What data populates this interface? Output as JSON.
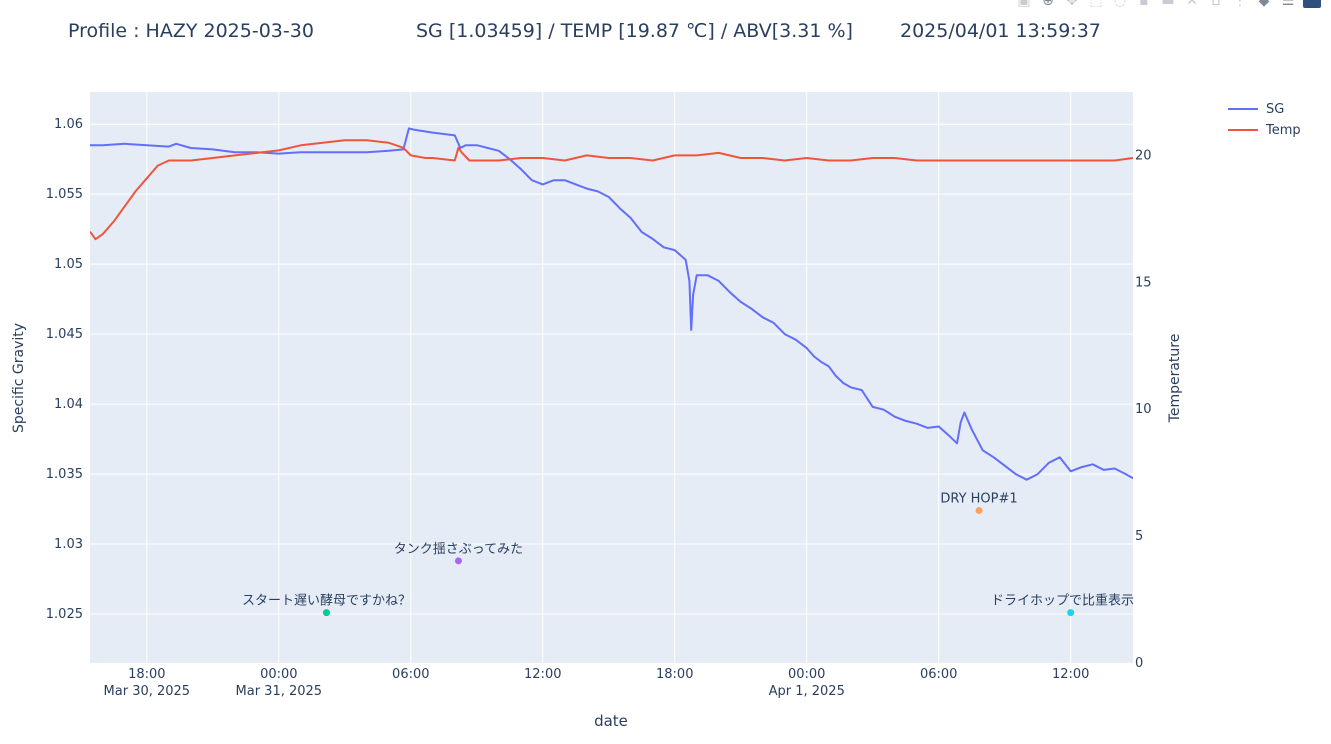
{
  "header": {
    "profile": "Profile : HAZY 2025-03-30",
    "readings": "SG [1.03459] / TEMP [19.87 ℃] / ABV[3.31 %]",
    "timestamp": "2025/04/01 13:59:37"
  },
  "modebar": {
    "icons": [
      "camera-icon",
      "zoom-icon",
      "pan-icon",
      "box-select-icon",
      "lasso-icon",
      "zoom-in-icon",
      "zoom-out-icon",
      "autoscale-icon",
      "home-icon",
      "spike-lines-icon",
      "hover-closest-icon",
      "hover-compare-icon",
      "plotly-logo-icon"
    ]
  },
  "chart_data": {
    "type": "line",
    "xlabel": "date",
    "ylabel": "Specific Gravity",
    "y2label": "Temperature",
    "x_range": [
      "2025-03-30 15:25",
      "2025-04-01 14:50"
    ],
    "ylim": [
      1.0215,
      1.0623
    ],
    "y2lim": [
      0,
      22.5
    ],
    "x_ticks": [
      {
        "t": "2025-03-30 18:00",
        "label": "18:00",
        "sub": "Mar 30, 2025"
      },
      {
        "t": "2025-03-31 00:00",
        "label": "00:00",
        "sub": "Mar 31, 2025"
      },
      {
        "t": "2025-03-31 06:00",
        "label": "06:00",
        "sub": ""
      },
      {
        "t": "2025-03-31 12:00",
        "label": "12:00",
        "sub": ""
      },
      {
        "t": "2025-03-31 18:00",
        "label": "18:00",
        "sub": ""
      },
      {
        "t": "2025-04-01 00:00",
        "label": "00:00",
        "sub": "Apr 1, 2025"
      },
      {
        "t": "2025-04-01 06:00",
        "label": "06:00",
        "sub": ""
      },
      {
        "t": "2025-04-01 12:00",
        "label": "12:00",
        "sub": ""
      }
    ],
    "y_ticks": [
      {
        "v": 1.025,
        "label": "1.025"
      },
      {
        "v": 1.03,
        "label": "1.03"
      },
      {
        "v": 1.035,
        "label": "1.035"
      },
      {
        "v": 1.04,
        "label": "1.04"
      },
      {
        "v": 1.045,
        "label": "1.045"
      },
      {
        "v": 1.05,
        "label": "1.05"
      },
      {
        "v": 1.055,
        "label": "1.055"
      },
      {
        "v": 1.06,
        "label": "1.06"
      }
    ],
    "y2_ticks": [
      {
        "v": 0,
        "label": "0"
      },
      {
        "v": 5,
        "label": "5"
      },
      {
        "v": 10,
        "label": "10"
      },
      {
        "v": 15,
        "label": "15"
      },
      {
        "v": 20,
        "label": "20"
      }
    ],
    "legend_position": "top-right, outside plot",
    "grid": true,
    "series": [
      {
        "name": "SG",
        "axis": "y",
        "color": "#636efa",
        "x": [
          "2025-03-30 15:25",
          "2025-03-30 16:00",
          "2025-03-30 17:00",
          "2025-03-30 18:00",
          "2025-03-30 19:00",
          "2025-03-30 19:20",
          "2025-03-30 20:00",
          "2025-03-30 21:00",
          "2025-03-30 22:00",
          "2025-03-30 23:00",
          "2025-03-31 00:00",
          "2025-03-31 01:00",
          "2025-03-31 02:00",
          "2025-03-31 03:00",
          "2025-03-31 04:00",
          "2025-03-31 05:00",
          "2025-03-31 05:40",
          "2025-03-31 05:55",
          "2025-03-31 06:10",
          "2025-03-31 07:00",
          "2025-03-31 08:00",
          "2025-03-31 08:15",
          "2025-03-31 08:30",
          "2025-03-31 09:00",
          "2025-03-31 09:30",
          "2025-03-31 10:00",
          "2025-03-31 10:30",
          "2025-03-31 11:00",
          "2025-03-31 11:30",
          "2025-03-31 12:00",
          "2025-03-31 12:30",
          "2025-03-31 13:00",
          "2025-03-31 13:30",
          "2025-03-31 14:00",
          "2025-03-31 14:30",
          "2025-03-31 15:00",
          "2025-03-31 15:30",
          "2025-03-31 16:00",
          "2025-03-31 16:30",
          "2025-03-31 17:00",
          "2025-03-31 17:30",
          "2025-03-31 18:00",
          "2025-03-31 18:30",
          "2025-03-31 18:40",
          "2025-03-31 18:45",
          "2025-03-31 18:50",
          "2025-03-31 19:00",
          "2025-03-31 19:30",
          "2025-03-31 20:00",
          "2025-03-31 20:30",
          "2025-03-31 21:00",
          "2025-03-31 21:30",
          "2025-03-31 22:00",
          "2025-03-31 22:30",
          "2025-03-31 23:00",
          "2025-03-31 23:30",
          "2025-04-01 00:00",
          "2025-04-01 00:20",
          "2025-04-01 00:40",
          "2025-04-01 01:00",
          "2025-04-01 01:20",
          "2025-04-01 01:40",
          "2025-04-01 02:00",
          "2025-04-01 02:30",
          "2025-04-01 03:00",
          "2025-04-01 03:30",
          "2025-04-01 04:00",
          "2025-04-01 04:30",
          "2025-04-01 05:00",
          "2025-04-01 05:30",
          "2025-04-01 06:00",
          "2025-04-01 06:30",
          "2025-04-01 06:50",
          "2025-04-01 07:00",
          "2025-04-01 07:10",
          "2025-04-01 07:30",
          "2025-04-01 08:00",
          "2025-04-01 08:30",
          "2025-04-01 09:00",
          "2025-04-01 09:30",
          "2025-04-01 10:00",
          "2025-04-01 10:30",
          "2025-04-01 11:00",
          "2025-04-01 11:30",
          "2025-04-01 12:00",
          "2025-04-01 12:30",
          "2025-04-01 13:00",
          "2025-04-01 13:30",
          "2025-04-01 14:00",
          "2025-04-01 14:30",
          "2025-04-01 14:50"
        ],
        "values": [
          1.0585,
          1.0585,
          1.0586,
          1.0585,
          1.0584,
          1.0586,
          1.0583,
          1.0582,
          1.058,
          1.058,
          1.0579,
          1.058,
          1.058,
          1.058,
          1.058,
          1.0581,
          1.0582,
          1.0597,
          1.0596,
          1.0594,
          1.0592,
          1.0583,
          1.0585,
          1.0585,
          1.0583,
          1.0581,
          1.0575,
          1.0568,
          1.056,
          1.0557,
          1.056,
          1.056,
          1.0557,
          1.0554,
          1.0552,
          1.0548,
          1.054,
          1.0533,
          1.0523,
          1.0518,
          1.0512,
          1.051,
          1.0503,
          1.0488,
          1.0453,
          1.0478,
          1.0492,
          1.0492,
          1.0488,
          1.048,
          1.0473,
          1.0468,
          1.0462,
          1.0458,
          1.045,
          1.0446,
          1.044,
          1.0434,
          1.043,
          1.0427,
          1.042,
          1.0415,
          1.0412,
          1.041,
          1.0398,
          1.0396,
          1.0391,
          1.0388,
          1.0386,
          1.0383,
          1.0384,
          1.0377,
          1.0372,
          1.0387,
          1.0394,
          1.0382,
          1.0367,
          1.0362,
          1.0356,
          1.035,
          1.0346,
          1.035,
          1.0358,
          1.0362,
          1.0352,
          1.0355,
          1.0357,
          1.0353,
          1.0354,
          1.035,
          1.0347
        ]
      },
      {
        "name": "Temp",
        "axis": "y2",
        "color": "#ef553b",
        "x": [
          "2025-03-30 15:25",
          "2025-03-30 15:40",
          "2025-03-30 16:00",
          "2025-03-30 16:30",
          "2025-03-30 17:00",
          "2025-03-30 17:30",
          "2025-03-30 18:00",
          "2025-03-30 18:30",
          "2025-03-30 19:00",
          "2025-03-30 19:30",
          "2025-03-30 20:00",
          "2025-03-30 21:00",
          "2025-03-30 22:00",
          "2025-03-30 23:00",
          "2025-03-31 00:00",
          "2025-03-31 01:00",
          "2025-03-31 02:00",
          "2025-03-31 03:00",
          "2025-03-31 04:00",
          "2025-03-31 05:00",
          "2025-03-31 05:40",
          "2025-03-31 06:00",
          "2025-03-31 06:40",
          "2025-03-31 07:00",
          "2025-03-31 08:00",
          "2025-03-31 08:10",
          "2025-03-31 08:20",
          "2025-03-31 08:40",
          "2025-03-31 09:00",
          "2025-03-31 10:00",
          "2025-03-31 11:00",
          "2025-03-31 12:00",
          "2025-03-31 13:00",
          "2025-03-31 14:00",
          "2025-03-31 15:00",
          "2025-03-31 16:00",
          "2025-03-31 17:00",
          "2025-03-31 18:00",
          "2025-03-31 19:00",
          "2025-03-31 20:00",
          "2025-03-31 21:00",
          "2025-03-31 22:00",
          "2025-03-31 23:00",
          "2025-04-01 00:00",
          "2025-04-01 01:00",
          "2025-04-01 02:00",
          "2025-04-01 03:00",
          "2025-04-01 04:00",
          "2025-04-01 05:00",
          "2025-04-01 06:00",
          "2025-04-01 07:00",
          "2025-04-01 08:00",
          "2025-04-01 09:00",
          "2025-04-01 10:00",
          "2025-04-01 11:00",
          "2025-04-01 12:00",
          "2025-04-01 13:00",
          "2025-04-01 14:00",
          "2025-04-01 14:50"
        ],
        "values": [
          17.0,
          16.7,
          16.9,
          17.4,
          18.0,
          18.6,
          19.1,
          19.6,
          19.8,
          19.8,
          19.8,
          19.9,
          20.0,
          20.1,
          20.2,
          20.4,
          20.5,
          20.6,
          20.6,
          20.5,
          20.3,
          20.0,
          19.9,
          19.9,
          19.8,
          20.3,
          20.1,
          19.8,
          19.8,
          19.8,
          19.9,
          19.9,
          19.8,
          20.0,
          19.9,
          19.9,
          19.8,
          20.0,
          20.0,
          20.1,
          19.9,
          19.9,
          19.8,
          19.9,
          19.8,
          19.8,
          19.9,
          19.9,
          19.8,
          19.8,
          19.8,
          19.8,
          19.8,
          19.8,
          19.8,
          19.8,
          19.8,
          19.8,
          19.9
        ]
      }
    ],
    "annotations": [
      {
        "t": "2025-03-31 02:10",
        "v": 1.0251,
        "text": "スタート遅い酵母ですかね？",
        "color": "#00cc96"
      },
      {
        "t": "2025-03-31 08:10",
        "v": 1.0288,
        "text": "タンク揺さぶってみた",
        "color": "#ab63fa"
      },
      {
        "t": "2025-04-01 07:50",
        "v": 1.0324,
        "text": "DRY HOP#1",
        "color": "#ffa15a"
      },
      {
        "t": "2025-04-01 12:00",
        "v": 1.0251,
        "text": "ドライホップで比重表示",
        "color": "#19d3f3"
      }
    ]
  }
}
